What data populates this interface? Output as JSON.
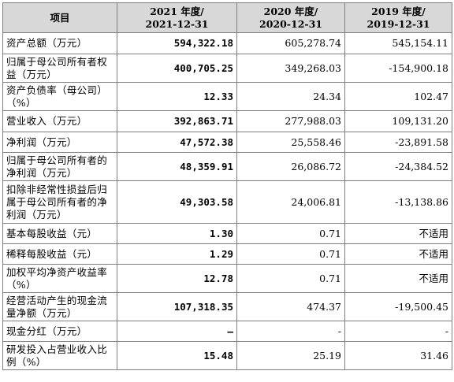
{
  "header": {
    "item": "项目",
    "col2021_year": "2021 年度/",
    "col2021_date": "2021-12-31",
    "col2020_year": "2020 年度/",
    "col2020_date": "2020-12-31",
    "col2019_year": "2019 年度/",
    "col2019_date": "2019-12-31"
  },
  "rows": [
    {
      "label": "资产总额（万元）",
      "v2021": "594,322.18",
      "v2020": "605,278.74",
      "v2019": "545,154.11"
    },
    {
      "label": "归属于母公司所有者权益（万元）",
      "v2021": "400,705.25",
      "v2020": "349,268.03",
      "v2019": "-154,900.18"
    },
    {
      "label": "资产负债率（母公司）（%）",
      "v2021": "12.33",
      "v2020": "24.34",
      "v2019": "102.47"
    },
    {
      "label": "营业收入（万元）",
      "v2021": "392,863.71",
      "v2020": "277,988.03",
      "v2019": "109,131.20"
    },
    {
      "label": "净利润（万元）",
      "v2021": "47,572.38",
      "v2020": "25,558.46",
      "v2019": "-23,891.58"
    },
    {
      "label": "归属于母公司所有者的净利润（万元）",
      "v2021": "48,359.91",
      "v2020": "26,086.72",
      "v2019": "-24,384.52"
    },
    {
      "label": "扣除非经常性损益后归属于母公司所有者的净利润（万元）",
      "v2021": "49,303.58",
      "v2020": "24,006.81",
      "v2019": "-13,138.86"
    },
    {
      "label": "基本每股收益（元）",
      "v2021": "1.30",
      "v2020": "0.71",
      "v2019": "不适用"
    },
    {
      "label": "稀释每股收益（元）",
      "v2021": "1.29",
      "v2020": "0.71",
      "v2019": "不适用"
    },
    {
      "label": "加权平均净资产收益率（%）",
      "v2021": "12.78",
      "v2020": "0.71",
      "v2019": "不适用"
    },
    {
      "label": "经营活动产生的现金流量净额（万元）",
      "v2021": "107,318.35",
      "v2020": "474.37",
      "v2019": "-19,500.45"
    },
    {
      "label": "现金分红（万元）",
      "v2021": "–",
      "v2020": "-",
      "v2019": "-"
    },
    {
      "label": "研发投入占营业收入比例（%）",
      "v2021": "15.48",
      "v2020": "25.19",
      "v2019": "31.46"
    }
  ]
}
